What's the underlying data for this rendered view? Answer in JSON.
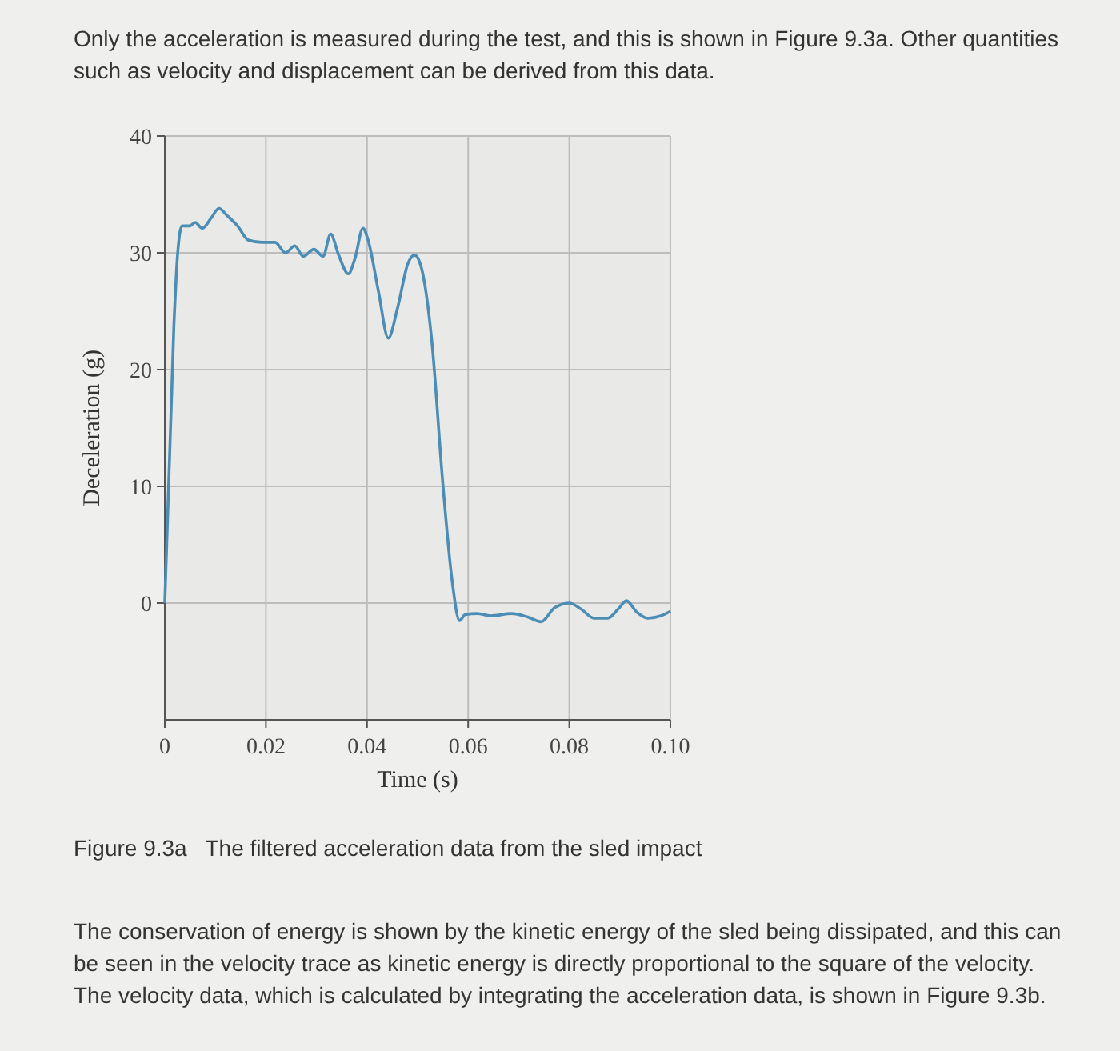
{
  "chart_data": {
    "type": "line",
    "xlabel": "Time (s)",
    "ylabel": "Deceleration (g)",
    "annotations": [
      "Only the acceleration is measured during the test, and this is shown in Figure 9.3a. Other quantities such as velocity and displacement can be derived from this data.",
      "Figure 9.3a   The filtered acceleration data from the sled impact",
      "The conservation of energy is shown by the kinetic energy of the sled being dissipated, and this can be seen in the velocity trace as kinetic energy is directly proportional to the square of the velocity. The velocity data, which is calculated by integrating the acceleration data, is shown in Figure 9.3b."
    ],
    "x": [
      0,
      0.0018,
      0.0025,
      0.0034,
      0.0049,
      0.006,
      0.0074,
      0.0092,
      0.0107,
      0.0123,
      0.0144,
      0.0165,
      0.0192,
      0.0218,
      0.0239,
      0.0257,
      0.0274,
      0.0295,
      0.0313,
      0.0328,
      0.0344,
      0.0363,
      0.0376,
      0.0392,
      0.0402,
      0.0423,
      0.0442,
      0.046,
      0.0481,
      0.0494,
      0.0507,
      0.0528,
      0.055,
      0.0568,
      0.0583,
      0.0594,
      0.0618,
      0.0644,
      0.0686,
      0.0718,
      0.0744,
      0.0771,
      0.08,
      0.0823,
      0.0849,
      0.0876,
      0.0897,
      0.0913,
      0.0934,
      0.0955,
      0.0981,
      0.1
    ],
    "series": [
      {
        "color": "#4b8db5",
        "values": [
          0,
          23.8,
          29.7,
          32.3,
          32.3,
          32.6,
          32.1,
          33,
          33.8,
          33.2,
          32.3,
          31.1,
          30.9,
          30.9,
          30,
          30.6,
          29.7,
          30.3,
          29.7,
          31.6,
          29.8,
          28.2,
          29.5,
          32.1,
          31.1,
          26.6,
          22.7,
          25.2,
          29.1,
          29.8,
          28.8,
          22.5,
          10.2,
          2,
          -1.5,
          -1,
          -0.9,
          -1.1,
          -0.9,
          -1.2,
          -1.6,
          -0.4,
          0,
          -0.5,
          -1.3,
          -1.3,
          -0.5,
          0.2,
          -0.8,
          -1.3,
          -1.1,
          -0.7
        ]
      }
    ],
    "xlim": [
      0,
      0.1
    ],
    "xticks": [
      0,
      0.02,
      0.04,
      0.06,
      0.08,
      {
        "value": 0.1,
        "label": "0.10"
      }
    ],
    "ylim": [
      -10,
      40
    ],
    "yticks": [
      0,
      10,
      20,
      30,
      40
    ],
    "grid": true,
    "marker": "none",
    "line_style": "solid"
  }
}
